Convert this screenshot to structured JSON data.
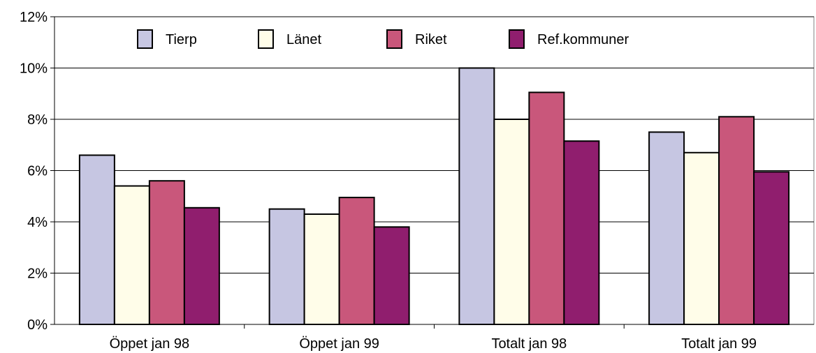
{
  "chart_data": {
    "type": "bar",
    "title": "",
    "xlabel": "",
    "ylabel": "",
    "ylim": [
      0,
      12
    ],
    "y_tick_values": [
      0,
      2,
      4,
      6,
      8,
      10,
      12
    ],
    "y_tick_labels": [
      "0%",
      "2%",
      "4%",
      "6%",
      "8%",
      "10%",
      "12%"
    ],
    "grid": true,
    "legend_position": "top",
    "categories": [
      "Öppet jan 98",
      "Öppet jan 99",
      "Totalt jan 98",
      "Totalt jan 99"
    ],
    "series": [
      {
        "name": "Tierp",
        "color": "#C6C6E2",
        "values": [
          6.6,
          4.5,
          10.0,
          7.5
        ]
      },
      {
        "name": "Länet",
        "color": "#FFFDE9",
        "values": [
          5.4,
          4.3,
          8.0,
          6.7
        ]
      },
      {
        "name": "Riket",
        "color": "#C9577B",
        "values": [
          5.6,
          4.95,
          9.05,
          8.1
        ]
      },
      {
        "name": "Ref.kommuner",
        "color": "#901E6E",
        "values": [
          4.55,
          3.8,
          7.15,
          5.95
        ]
      }
    ]
  }
}
